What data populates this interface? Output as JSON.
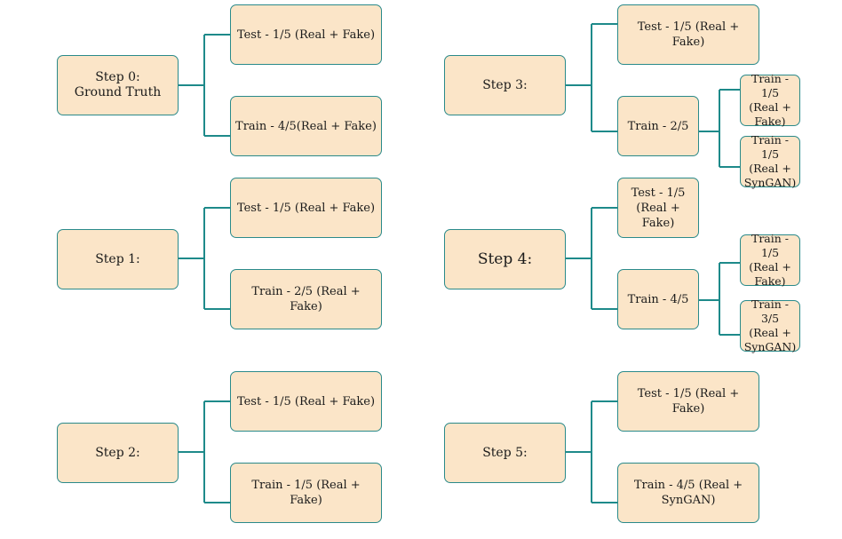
{
  "colors": {
    "fill": "#fbe5c8",
    "border": "#2a8a8a",
    "connector": "#1e8a8a"
  },
  "steps": [
    {
      "label": "Step 0:\nGround Truth",
      "children": [
        "Test - 1/5 (Real + Fake)",
        "Train - 4/5(Real  + Fake)"
      ]
    },
    {
      "label": "Step 1:",
      "children": [
        "Test - 1/5 (Real + Fake)",
        "Train - 2/5 (Real + Fake)"
      ]
    },
    {
      "label": "Step 2:",
      "children": [
        "Test - 1/5 (Real + Fake)",
        "Train - 1/5 (Real + Fake)"
      ]
    },
    {
      "label": "Step 3:",
      "children": [
        "Test - 1/5 (Real + Fake)",
        "Train - 2/5"
      ],
      "sub": [
        "Train - 1/5\n(Real +\nFake)",
        "Train - 1/5\n(Real +\nSynGAN)"
      ]
    },
    {
      "label": "Step 4:",
      "children": [
        "Test - 1/5\n(Real + Fake)",
        "Train - 4/5"
      ],
      "sub": [
        "Train - 1/5\n(Real +\nFake)",
        "Train - 3/5\n(Real +\nSynGAN)"
      ]
    },
    {
      "label": "Step 5:",
      "children": [
        "Test - 1/5 (Real + Fake)",
        "Train - 4/5 (Real +\nSynGAN)"
      ]
    }
  ]
}
